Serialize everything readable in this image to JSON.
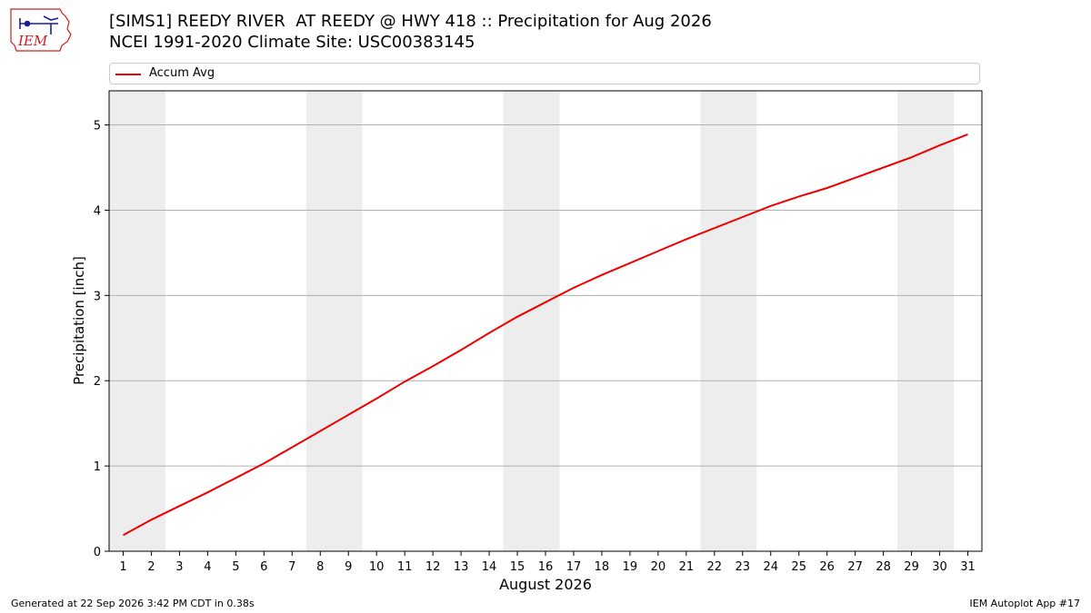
{
  "header": {
    "logo_text": "IEM",
    "title_line1": "[SIMS1] REEDY RIVER  AT REEDY @ HWY 418 :: Precipitation for Aug 2026",
    "title_line2": "NCEI 1991-2020 Climate Site: USC00383145"
  },
  "footer": {
    "generated": "Generated at 22 Sep 2026 3:42 PM CDT in 0.38s",
    "app": "IEM Autoplot App #17"
  },
  "colors": {
    "line": "#ee0000",
    "weekend_band": "#ededed",
    "grid": "#b0b0b0",
    "logo": "#cc2222",
    "logo_icon": "#1a1aa8"
  },
  "chart_data": {
    "type": "line",
    "xlabel": "August 2026",
    "ylabel": "Precipitation [inch]",
    "ylim": [
      0,
      5.4
    ],
    "xlim": [
      0.5,
      31.5
    ],
    "yticks": [
      0,
      1,
      2,
      3,
      4,
      5
    ],
    "x": [
      1,
      2,
      3,
      4,
      5,
      6,
      7,
      8,
      9,
      10,
      11,
      12,
      13,
      14,
      15,
      16,
      17,
      18,
      19,
      20,
      21,
      22,
      23,
      24,
      25,
      26,
      27,
      28,
      29,
      30,
      31
    ],
    "grid": "horizontal",
    "legend_position": "top",
    "series": [
      {
        "name": "Accum Avg",
        "values": [
          0.19,
          0.37,
          0.53,
          0.69,
          0.86,
          1.03,
          1.22,
          1.41,
          1.6,
          1.79,
          1.99,
          2.17,
          2.36,
          2.56,
          2.75,
          2.92,
          3.09,
          3.24,
          3.38,
          3.52,
          3.66,
          3.79,
          3.92,
          4.05,
          4.16,
          4.26,
          4.38,
          4.5,
          4.62,
          4.76,
          4.89
        ]
      }
    ],
    "weekend_bands": [
      [
        0.5,
        2.5
      ],
      [
        7.5,
        9.5
      ],
      [
        14.5,
        16.5
      ],
      [
        21.5,
        23.5
      ],
      [
        28.5,
        30.5
      ]
    ]
  }
}
